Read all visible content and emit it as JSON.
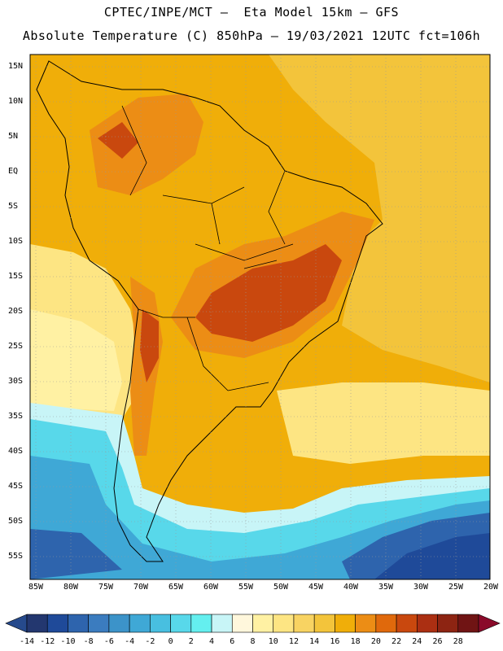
{
  "title_line1": "CPTEC/INPE/MCT –  Eta Model 15km – GFS",
  "title_line2": "Absolute Temperature (C) 850hPa – 19/03/2021 12UTC fct=106h",
  "lat_labels": [
    "15N",
    "10N",
    "5N",
    "EQ",
    "5S",
    "10S",
    "15S",
    "20S",
    "25S",
    "30S",
    "35S",
    "40S",
    "45S",
    "50S",
    "55S"
  ],
  "lon_labels": [
    "85W",
    "80W",
    "75W",
    "70W",
    "65W",
    "60W",
    "55W",
    "50W",
    "45W",
    "40W",
    "35W",
    "30W",
    "25W",
    "20W"
  ],
  "colorbar": {
    "labels": [
      "-14",
      "-12",
      "-10",
      "-8",
      "-6",
      "-4",
      "-2",
      "0",
      "2",
      "4",
      "6",
      "8",
      "10",
      "12",
      "14",
      "16",
      "18",
      "20",
      "22",
      "24",
      "26",
      "28"
    ],
    "colors": [
      "#23376f",
      "#1f4a99",
      "#2e64ad",
      "#3b7cbf",
      "#3c93c9",
      "#3fa8d6",
      "#48bfe0",
      "#58d8ea",
      "#64efef",
      "#c8f5f7",
      "#fff7dc",
      "#fff1a3",
      "#fde583",
      "#f8d362",
      "#f3c43b",
      "#f0ae09",
      "#ec8d15",
      "#e0690c",
      "#c9480e",
      "#ab2f12",
      "#8d2412",
      "#701414"
    ],
    "left_arrow_color": "#264a8c",
    "right_arrow_color": "#8a0a2a"
  },
  "regions": [
    {
      "name": "warm-background",
      "color": "#f0ae09"
    },
    {
      "name": "atlantic-warm",
      "color": "#f3c43b"
    },
    {
      "name": "pacific-mild",
      "color": "#fde583"
    },
    {
      "name": "pacific-pale",
      "color": "#fff1a3"
    },
    {
      "name": "southern-light-cyan",
      "color": "#c8f5f7"
    },
    {
      "name": "southern-cyan",
      "color": "#58d8ea"
    },
    {
      "name": "southern-mid-blue",
      "color": "#3fa8d6"
    },
    {
      "name": "southern-deep-blue",
      "color": "#2e64ad"
    },
    {
      "name": "southern-darkest-blue",
      "color": "#1f4a99"
    },
    {
      "name": "continent-hot",
      "color": "#ec8d15"
    },
    {
      "name": "continent-hottest",
      "color": "#c9480e"
    }
  ]
}
